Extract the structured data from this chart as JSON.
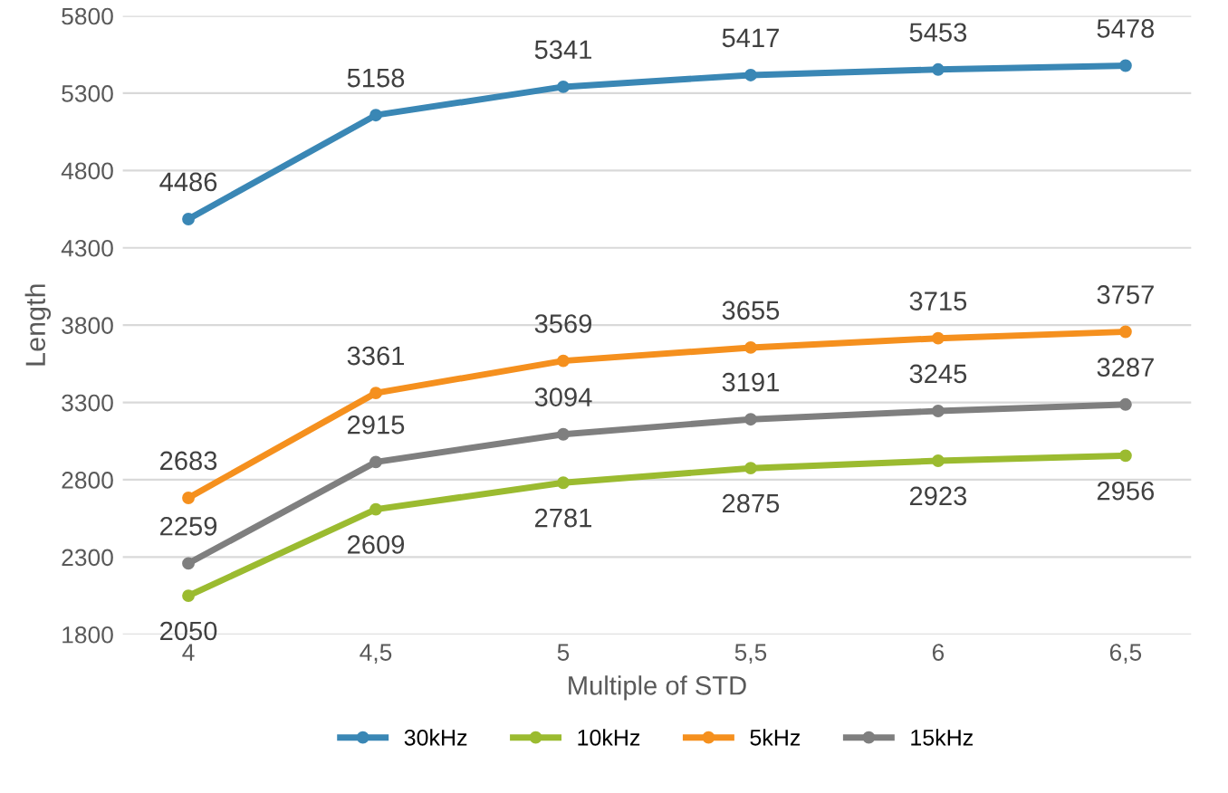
{
  "chart_data": {
    "type": "line",
    "xlabel": "Multiple of STD",
    "ylabel": "Length",
    "categories": [
      "4",
      "4,5",
      "5",
      "5,5",
      "6",
      "6,5"
    ],
    "series": [
      {
        "name": "30kHz",
        "color": "#3a87b5",
        "values": [
          4486,
          5158,
          5341,
          5417,
          5453,
          5478
        ]
      },
      {
        "name": "10kHz",
        "color": "#9bbb30",
        "values": [
          2050,
          2609,
          2781,
          2875,
          2923,
          2956
        ]
      },
      {
        "name": "5kHz",
        "color": "#f5901e",
        "values": [
          2683,
          3361,
          3569,
          3655,
          3715,
          3757
        ]
      },
      {
        "name": "15kHz",
        "color": "#7f7f7f",
        "values": [
          2259,
          2915,
          3094,
          3191,
          3245,
          3287
        ]
      }
    ],
    "ylim": [
      1800,
      5800
    ],
    "yticks": [
      1800,
      2300,
      2800,
      3300,
      3800,
      4300,
      4800,
      5300,
      5800
    ],
    "grid": "y",
    "legend": "bottom",
    "marker": "circle",
    "line_style": "solid",
    "data_labels": true
  }
}
